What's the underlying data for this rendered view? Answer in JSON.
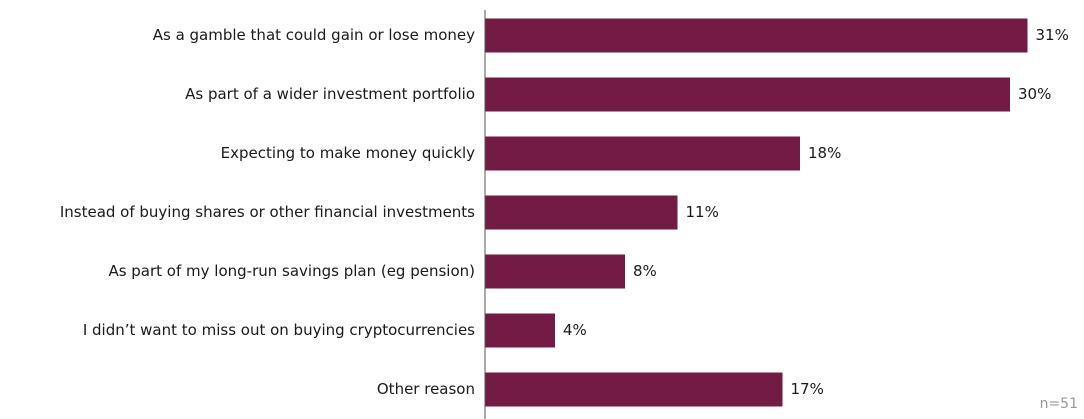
{
  "chart_data": {
    "type": "bar",
    "orientation": "horizontal",
    "categories": [
      "As a gamble that could gain or lose money",
      "As part of a wider investment portfolio",
      "Expecting to make money quickly",
      "Instead of buying shares or other financial investments",
      "As part of my long-run savings plan (eg pension)",
      "I didn’t want to miss out on buying cryptocurrencies",
      "Other reason"
    ],
    "values": [
      31,
      30,
      18,
      11,
      8,
      4,
      17
    ],
    "value_labels": [
      "31%",
      "30%",
      "18%",
      "11%",
      "8%",
      "4%",
      "17%"
    ],
    "color": "#721b44",
    "xlim": [
      0,
      34
    ],
    "annotation": "n=51"
  }
}
